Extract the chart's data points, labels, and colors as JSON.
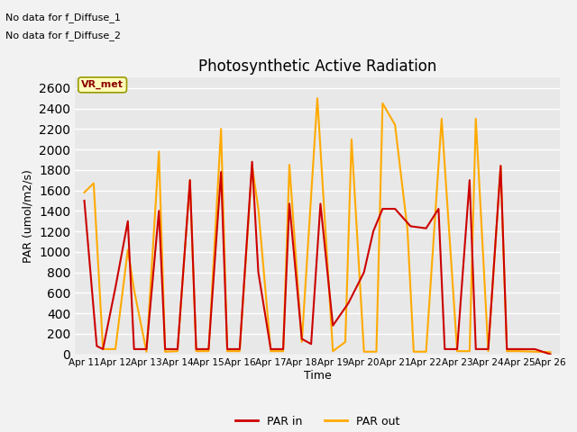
{
  "title": "Photosynthetic Active Radiation",
  "xlabel": "Time",
  "ylabel": "PAR (umol/m2/s)",
  "annotation_line1": "No data for f_Diffuse_1",
  "annotation_line2": "No data for f_Diffuse_2",
  "vr_met_label": "VR_met",
  "legend_entries": [
    "PAR in",
    "PAR out"
  ],
  "par_in_color": "#cc0000",
  "par_out_color": "#ffaa00",
  "axes_bg_color": "#e8e8e8",
  "fig_bg_color": "#f2f2f2",
  "grid_color": "#ffffff",
  "ylim": [
    0,
    2700
  ],
  "yticks": [
    0,
    200,
    400,
    600,
    800,
    1000,
    1200,
    1400,
    1600,
    1800,
    2000,
    2200,
    2400,
    2600
  ],
  "x_labels": [
    "Apr 11",
    "Apr 12",
    "Apr 13",
    "Apr 14",
    "Apr 15",
    "Apr 16",
    "Apr 17",
    "Apr 18",
    "Apr 19",
    "Apr 20",
    "Apr 21",
    "Apr 22",
    "Apr 23",
    "Apr 24",
    "Apr 25",
    "Apr 26"
  ],
  "par_in_x": [
    0,
    0.4,
    0.6,
    1.0,
    1.4,
    1.6,
    2.0,
    2.4,
    2.6,
    3.0,
    3.4,
    3.6,
    4.0,
    4.4,
    4.6,
    5.0,
    5.4,
    5.6,
    6.0,
    6.4,
    6.6,
    7.0,
    7.3,
    7.6,
    8.0,
    8.5,
    9.0,
    9.3,
    9.6,
    10.0,
    10.5,
    11.0,
    11.4,
    11.6,
    12.0,
    12.4,
    12.6,
    13.0,
    13.4,
    13.6,
    14.0,
    14.5,
    15.0
  ],
  "par_in_y": [
    1500,
    80,
    50,
    650,
    1300,
    50,
    50,
    1400,
    50,
    50,
    1700,
    50,
    50,
    1780,
    50,
    50,
    1880,
    800,
    50,
    50,
    1470,
    150,
    100,
    1470,
    280,
    500,
    800,
    1200,
    1420,
    1420,
    1250,
    1230,
    1420,
    50,
    50,
    1700,
    50,
    50,
    1840,
    50,
    50,
    50,
    0
  ],
  "par_out_x": [
    0,
    0.3,
    0.6,
    1.0,
    1.4,
    1.6,
    2.0,
    2.4,
    2.6,
    3.0,
    3.4,
    3.6,
    4.0,
    4.4,
    4.6,
    5.0,
    5.4,
    5.6,
    6.0,
    6.4,
    6.6,
    7.0,
    7.5,
    8.0,
    8.4,
    8.6,
    9.0,
    9.4,
    9.6,
    10.0,
    10.4,
    10.6,
    11.0,
    11.5,
    12.0,
    12.4,
    12.6,
    13.0,
    13.4,
    13.6,
    14.0,
    14.5,
    15.0
  ],
  "par_out_y": [
    1580,
    1670,
    50,
    50,
    1020,
    630,
    25,
    1980,
    25,
    30,
    1700,
    30,
    30,
    2200,
    30,
    30,
    1840,
    1420,
    30,
    30,
    1850,
    120,
    2500,
    30,
    120,
    2100,
    25,
    25,
    2450,
    2240,
    1220,
    25,
    25,
    2300,
    30,
    30,
    2300,
    30,
    1840,
    30,
    30,
    25,
    20
  ]
}
